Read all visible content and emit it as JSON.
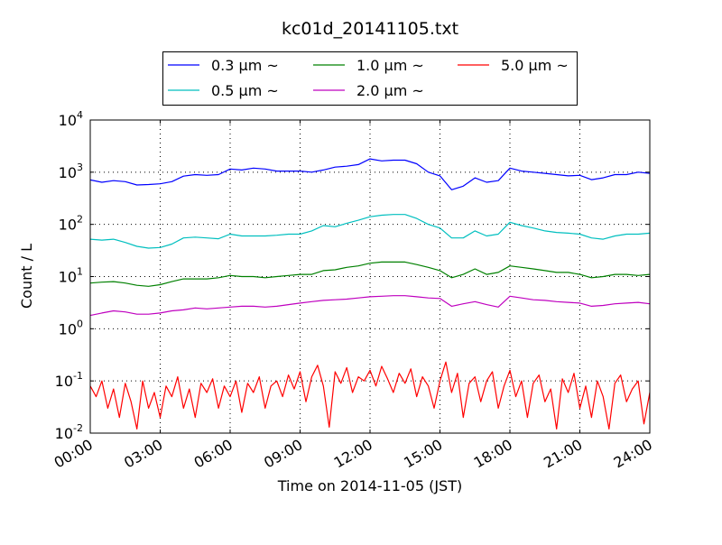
{
  "chart_data": {
    "type": "line",
    "title": "kc01d_20141105.txt",
    "xlabel": "Time on 2014-11-05 (JST)",
    "ylabel": "Count / L",
    "yscale": "log",
    "ylim": [
      0.01,
      10000
    ],
    "xlim_hours": [
      0,
      24
    ],
    "grid": true,
    "legend_placement": "top-center",
    "xticks": [
      {
        "hour": 0,
        "label": "00:00"
      },
      {
        "hour": 3,
        "label": "03:00"
      },
      {
        "hour": 6,
        "label": "06:00"
      },
      {
        "hour": 9,
        "label": "09:00"
      },
      {
        "hour": 12,
        "label": "12:00"
      },
      {
        "hour": 15,
        "label": "15:00"
      },
      {
        "hour": 18,
        "label": "18:00"
      },
      {
        "hour": 21,
        "label": "21:00"
      },
      {
        "hour": 24,
        "label": "24:00"
      }
    ],
    "yticks": [
      {
        "value": 0.01,
        "base": "10",
        "exp": "-2"
      },
      {
        "value": 0.1,
        "base": "10",
        "exp": "-1"
      },
      {
        "value": 1,
        "base": "10",
        "exp": "0"
      },
      {
        "value": 10,
        "base": "10",
        "exp": "1"
      },
      {
        "value": 100,
        "base": "10",
        "exp": "2"
      },
      {
        "value": 1000,
        "base": "10",
        "exp": "3"
      },
      {
        "value": 10000,
        "base": "10",
        "exp": "4"
      }
    ],
    "series": [
      {
        "name": "0.3 μm ~",
        "color": "#0000ff",
        "step_hours": 0.5,
        "values": [
          710,
          640,
          690,
          660,
          570,
          580,
          600,
          660,
          840,
          900,
          870,
          900,
          1150,
          1100,
          1200,
          1150,
          1050,
          1050,
          1050,
          1000,
          1100,
          1250,
          1300,
          1400,
          1800,
          1650,
          1700,
          1700,
          1450,
          1000,
          850,
          460,
          540,
          780,
          640,
          690,
          1200,
          1050,
          1000,
          950,
          900,
          850,
          870,
          720,
          780,
          900,
          900,
          1000,
          950
        ]
      },
      {
        "name": "0.5 μm ~",
        "color": "#00bfbf",
        "step_hours": 0.5,
        "values": [
          52,
          50,
          52,
          45,
          38,
          35,
          36,
          42,
          55,
          57,
          55,
          53,
          65,
          60,
          60,
          60,
          62,
          65,
          65,
          75,
          95,
          90,
          105,
          120,
          140,
          150,
          155,
          155,
          130,
          100,
          85,
          55,
          55,
          75,
          60,
          65,
          110,
          95,
          85,
          75,
          70,
          68,
          65,
          55,
          52,
          60,
          65,
          65,
          68
        ]
      },
      {
        "name": "1.0 μm ~",
        "color": "#008000",
        "step_hours": 0.5,
        "values": [
          7.5,
          7.8,
          8,
          7.5,
          6.8,
          6.5,
          7,
          8,
          9,
          9,
          9,
          9.5,
          10.5,
          10,
          10,
          9.5,
          10,
          10.5,
          11,
          11,
          13,
          13.5,
          15,
          16,
          18,
          19,
          19,
          19,
          17,
          15,
          13,
          9.5,
          11,
          14,
          11,
          12,
          16,
          15,
          14,
          13,
          12,
          12,
          11,
          9.5,
          10,
          11,
          11,
          10.5,
          11
        ]
      },
      {
        "name": "2.0 μm ~",
        "color": "#bf00bf",
        "step_hours": 0.5,
        "values": [
          1.8,
          2,
          2.2,
          2.1,
          1.9,
          1.9,
          2,
          2.2,
          2.3,
          2.5,
          2.4,
          2.5,
          2.6,
          2.7,
          2.7,
          2.6,
          2.7,
          2.9,
          3.1,
          3.3,
          3.5,
          3.6,
          3.7,
          3.9,
          4.1,
          4.2,
          4.3,
          4.3,
          4.1,
          3.9,
          3.8,
          2.7,
          3.0,
          3.3,
          2.9,
          2.6,
          4.2,
          3.9,
          3.6,
          3.5,
          3.3,
          3.2,
          3.1,
          2.7,
          2.8,
          3.0,
          3.1,
          3.2,
          3.0
        ]
      },
      {
        "name": "5.0 μm ~",
        "color": "#ff0000",
        "step_hours": 0.25,
        "values": [
          0.08,
          0.05,
          0.1,
          0.03,
          0.07,
          0.02,
          0.09,
          0.04,
          0.012,
          0.1,
          0.03,
          0.06,
          0.02,
          0.08,
          0.05,
          0.12,
          0.03,
          0.07,
          0.02,
          0.09,
          0.06,
          0.11,
          0.03,
          0.08,
          0.05,
          0.1,
          0.025,
          0.09,
          0.06,
          0.12,
          0.03,
          0.08,
          0.1,
          0.05,
          0.13,
          0.07,
          0.15,
          0.04,
          0.12,
          0.2,
          0.08,
          0.013,
          0.15,
          0.09,
          0.18,
          0.06,
          0.12,
          0.1,
          0.16,
          0.08,
          0.19,
          0.11,
          0.06,
          0.14,
          0.09,
          0.17,
          0.05,
          0.12,
          0.08,
          0.03,
          0.1,
          0.23,
          0.06,
          0.14,
          0.02,
          0.09,
          0.12,
          0.04,
          0.1,
          0.15,
          0.03,
          0.08,
          0.16,
          0.05,
          0.1,
          0.02,
          0.09,
          0.13,
          0.04,
          0.07,
          0.012,
          0.11,
          0.06,
          0.14,
          0.03,
          0.08,
          0.02,
          0.1,
          0.05,
          0.012,
          0.09,
          0.13,
          0.04,
          0.07,
          0.1,
          0.015,
          0.06
        ]
      }
    ],
    "legend": [
      {
        "label": "0.3 μm ~",
        "color": "#0000ff"
      },
      {
        "label": "1.0 μm ~",
        "color": "#008000"
      },
      {
        "label": "5.0 μm ~",
        "color": "#ff0000"
      },
      {
        "label": "0.5 μm ~",
        "color": "#00bfbf"
      },
      {
        "label": "2.0 μm ~",
        "color": "#bf00bf"
      }
    ]
  }
}
